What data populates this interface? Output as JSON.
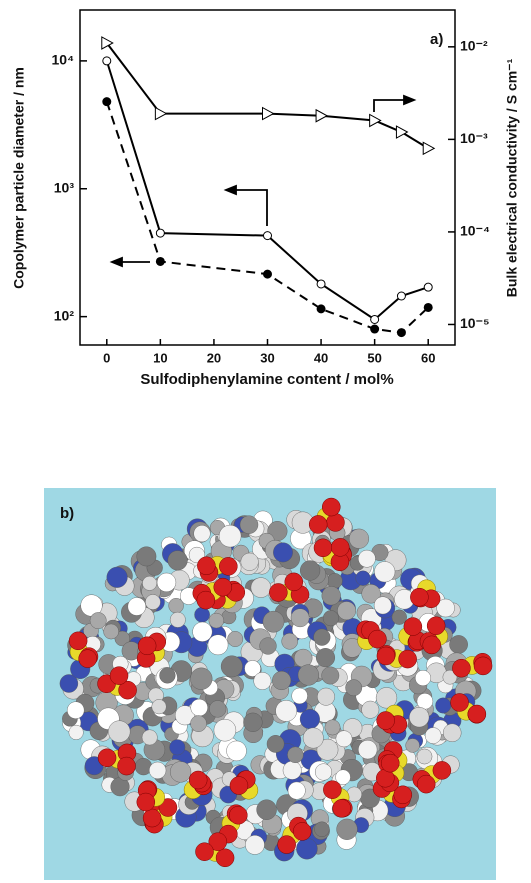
{
  "chart_data": {
    "type": "line",
    "annotation": "a)",
    "x_label": "Sulfodiphenylamine content / mol%",
    "y_label": "Copolymer particle diameter / nm",
    "y2_label": "Bulk electrical conductivity / S cm⁻¹",
    "x": [
      0,
      10,
      30,
      40,
      50,
      55,
      60
    ],
    "xlim": [
      -5,
      65
    ],
    "xticks": [
      0,
      10,
      20,
      30,
      40,
      50,
      60
    ],
    "ylim": [
      60,
      25000
    ],
    "yticks": [
      {
        "value": 100,
        "label": "10²"
      },
      {
        "value": 1000,
        "label": "10³"
      },
      {
        "value": 10000,
        "label": "10⁴"
      }
    ],
    "y_log": true,
    "y2lim": [
      6e-06,
      0.025
    ],
    "y2ticks": [
      {
        "value": 1e-05,
        "label": "10⁻⁵"
      },
      {
        "value": 0.0001,
        "label": "10⁻⁴"
      },
      {
        "value": 0.001,
        "label": "10⁻³"
      },
      {
        "value": 0.01,
        "label": "10⁻²"
      }
    ],
    "y2_log": true,
    "series": [
      {
        "color": "#000000",
        "marker": "open-circle",
        "line_style": "solid",
        "values": [
          10000,
          450,
          430,
          180,
          95,
          145,
          170
        ]
      },
      {
        "color": "#000000",
        "marker": "filled-circle",
        "line_style": "dashed",
        "values": [
          4800,
          270,
          215,
          115,
          80,
          75,
          118
        ]
      },
      {
        "color": "#000000",
        "marker": "open-triangle",
        "line_style": "solid",
        "axis": "y2",
        "values": [
          0.011,
          0.0019,
          0.0019,
          0.0018,
          0.0016,
          0.0012,
          0.0008
        ]
      }
    ]
  },
  "panel_b": {
    "label": "b)"
  }
}
